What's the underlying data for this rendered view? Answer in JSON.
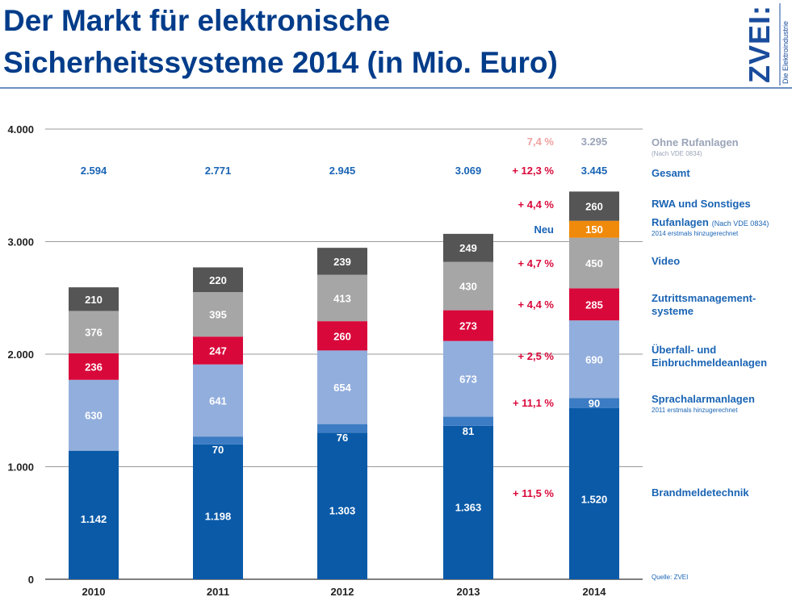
{
  "header": {
    "title_line1": "Der Markt für elektronische",
    "title_line2": "Sicherheitssysteme 2014 (in Mio. Euro)",
    "logo_text": "ZVEI:",
    "logo_subtext": "Die Elektroindustrie"
  },
  "colors": {
    "title": "#003c8a",
    "Brandmeldetechnik": "#0a5aa8",
    "Sprachalarmanlagen": "#3c7cc4",
    "Ueberfall": "#92aedd",
    "Zutritt": "#d9083a",
    "Video": "#a6a6a6",
    "Rufanlagen": "#f08a0a",
    "RWA": "#555555",
    "growth_red": "#d9083a",
    "growth_pink": "#f0a0a0",
    "totals_blue": "#1a64b4",
    "legend_blue": "#1a64b4",
    "legend_gray": "#9aa4b8"
  },
  "chart_data": {
    "type": "bar",
    "stacked": true,
    "title": "Der Markt für elektronische Sicherheitssysteme 2014 (in Mio. Euro)",
    "categories": [
      "2010",
      "2011",
      "2012",
      "2013",
      "2014"
    ],
    "ylim": [
      0,
      4000
    ],
    "yticks": [
      0,
      1000,
      2000,
      3000,
      4000
    ],
    "ytick_labels": [
      "0",
      "1.000",
      "2.000",
      "3.000",
      "4.000"
    ],
    "grid": true,
    "series": [
      {
        "key": "Brandmeldetechnik",
        "name": "Brandmeldetechnik",
        "values": [
          1142,
          1198,
          1303,
          1363,
          1520
        ],
        "labels": [
          "1.142",
          "1.198",
          "1.303",
          "1.363",
          "1.520"
        ]
      },
      {
        "key": "Sprachalarmanlagen",
        "name": "Sprachalarmanlagen",
        "note": "2011 erstmals hinzugerechnet",
        "values": [
          0,
          70,
          76,
          81,
          90
        ],
        "labels": [
          "",
          "70",
          "76",
          "81",
          "90"
        ]
      },
      {
        "key": "Ueberfall",
        "name": "Überfall- und Einbruchmeldeanlagen",
        "values": [
          630,
          641,
          654,
          673,
          690
        ],
        "labels": [
          "630",
          "641",
          "654",
          "673",
          "690"
        ]
      },
      {
        "key": "Zutritt",
        "name": "Zutrittsmanagement-systeme",
        "values": [
          236,
          247,
          260,
          273,
          285
        ],
        "labels": [
          "236",
          "247",
          "260",
          "273",
          "285"
        ]
      },
      {
        "key": "Video",
        "name": "Video",
        "values": [
          376,
          395,
          413,
          430,
          450
        ],
        "labels": [
          "376",
          "395",
          "413",
          "430",
          "450"
        ]
      },
      {
        "key": "Rufanlagen",
        "name": "Rufanlagen (Nach VDE 0834)",
        "note": "2014 erstmals hinzugerechnet",
        "values": [
          0,
          0,
          0,
          0,
          150
        ],
        "labels": [
          "",
          "",
          "",
          "",
          "150"
        ]
      },
      {
        "key": "RWA",
        "name": "RWA und Sonstiges",
        "values": [
          210,
          220,
          239,
          249,
          260
        ],
        "labels": [
          "210",
          "220",
          "239",
          "249",
          "260"
        ]
      }
    ],
    "totals": {
      "label": "Gesamt",
      "values": [
        "2.594",
        "2.771",
        "2.945",
        "3.069",
        "3.445"
      ],
      "growth": "+ 12,3 %"
    },
    "ohne_rufanlagen": {
      "label": "Ohne Rufanlagen",
      "sublabel": "(Nach VDE 0834)",
      "value": "3.295",
      "growth": "7,4 %"
    },
    "growth_annotations": [
      {
        "text": "+ 4,4 %",
        "series": "RWA"
      },
      {
        "text": "Neu",
        "series": "Rufanlagen"
      },
      {
        "text": "+ 4,7 %",
        "series": "Video"
      },
      {
        "text": "+ 4,4 %",
        "series": "Zutritt"
      },
      {
        "text": "+ 2,5 %",
        "series": "Ueberfall"
      },
      {
        "text": "+ 11,1 %",
        "series": "Sprachalarmanlagen"
      },
      {
        "text": "+ 11,5 %",
        "series": "Brandmeldetechnik"
      }
    ],
    "legend": [
      {
        "lines": [
          "RWA und Sonstiges"
        ]
      },
      {
        "lines": [
          "Rufanlagen"
        ],
        "suffix": "(Nach VDE 0834)",
        "note": "2014 erstmals hinzugerechnet"
      },
      {
        "lines": [
          "Video"
        ]
      },
      {
        "lines": [
          "Zutrittsmanagement-",
          "systeme"
        ]
      },
      {
        "lines": [
          "Überfall- und",
          "Einbruchmeldeanlagen"
        ]
      },
      {
        "lines": [
          "Sprachalarmanlagen"
        ],
        "note": "2011 erstmals hinzugerechnet"
      },
      {
        "lines": [
          "Brandmeldetechnik"
        ]
      }
    ],
    "source": "Quelle: ZVEI"
  }
}
